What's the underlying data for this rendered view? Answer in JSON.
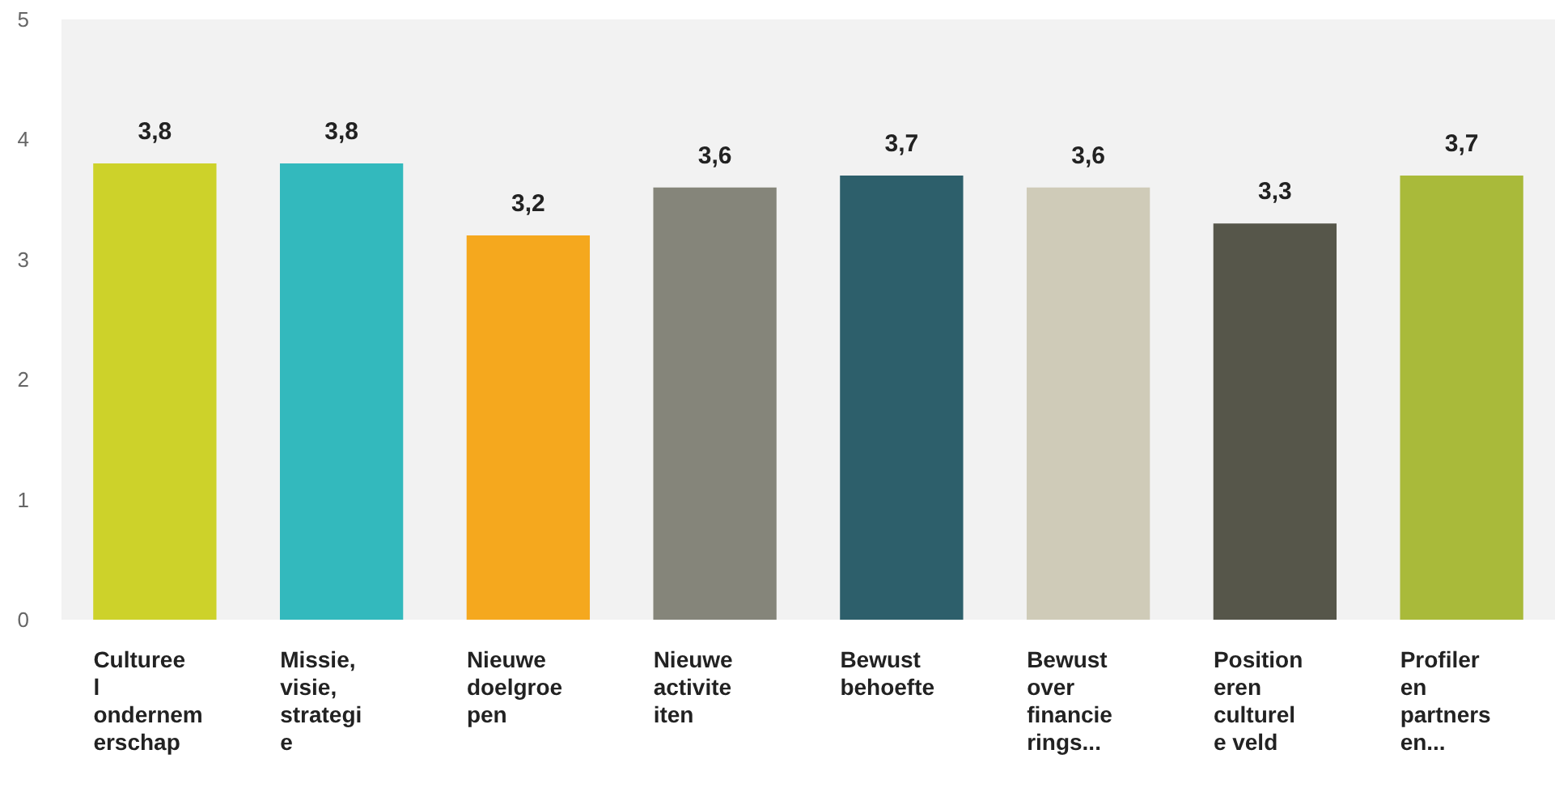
{
  "chart_data": {
    "type": "bar",
    "categories": [
      "Cultureel ondernemerschap",
      "Missie, visie, strategie",
      "Nieuwe doelgroepen",
      "Nieuwe activiteiten",
      "Bewust behoefte",
      "Bewust over financierings...",
      "Positioneren culturele veld",
      "Profileren partners en..."
    ],
    "values": [
      3.8,
      3.8,
      3.2,
      3.6,
      3.7,
      3.6,
      3.3,
      3.7
    ],
    "colors": [
      "#cdd22a",
      "#33b9bd",
      "#f5a81e",
      "#85857a",
      "#2d5f6b",
      "#cfcbb8",
      "#56564a",
      "#a9ba3a"
    ],
    "value_labels": [
      "3,8",
      "3,8",
      "3,2",
      "3,6",
      "3,7",
      "3,6",
      "3,3",
      "3,7"
    ],
    "ylim": [
      0,
      5
    ],
    "yticks": [
      0,
      1,
      2,
      3,
      4,
      5
    ],
    "grid": false
  }
}
